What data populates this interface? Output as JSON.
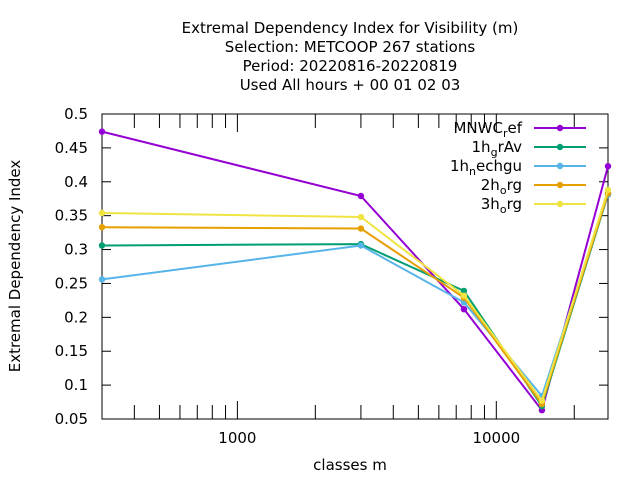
{
  "chart_data": {
    "type": "line",
    "title_lines": [
      "Extremal Dependency Index  for Visibility (m)",
      "Selection: METCOOP    267 stations",
      "Period: 20220816-20220819",
      "Used  All hours  + 00 01 02 03"
    ],
    "xlabel": "classes m",
    "ylabel": "Extremal Dependency Index",
    "x_scale": "log",
    "xlim": [
      300,
      27000
    ],
    "ylim": [
      0.05,
      0.5
    ],
    "x_ticks": [
      1000,
      10000
    ],
    "x_tick_labels": [
      "1000",
      "10000"
    ],
    "y_ticks": [
      0.05,
      0.1,
      0.15,
      0.2,
      0.25,
      0.3,
      0.35,
      0.4,
      0.45,
      0.5
    ],
    "y_tick_labels": [
      "0.05",
      "0.1",
      "0.15",
      "0.2",
      "0.25",
      "0.3",
      "0.35",
      "0.4",
      "0.45",
      "0.5"
    ],
    "grid": false,
    "legend_position": "top-right",
    "x": [
      300,
      3000,
      7500,
      15000,
      27000
    ],
    "series": [
      {
        "name": "MNWC_ref",
        "legend": {
          "base": "MNWC",
          "sub": "r",
          "rest": "ef"
        },
        "color": "#9400d3",
        "values": [
          0.474,
          0.379,
          0.212,
          0.063,
          0.423
        ]
      },
      {
        "name": "1h_grAv",
        "legend": {
          "base": "1h",
          "sub": "g",
          "rest": "rAv"
        },
        "color": "#009e73",
        "values": [
          0.306,
          0.308,
          0.239,
          0.069,
          0.381
        ]
      },
      {
        "name": "1h_nechgu",
        "legend": {
          "base": "1h",
          "sub": "n",
          "rest": "echgu"
        },
        "color": "#56b4e9",
        "values": [
          0.256,
          0.306,
          0.222,
          0.084,
          0.381
        ]
      },
      {
        "name": "2h_org",
        "legend": {
          "base": "2h",
          "sub": "o",
          "rest": "rg"
        },
        "color": "#e69f00",
        "values": [
          0.333,
          0.331,
          0.229,
          0.072,
          0.383
        ]
      },
      {
        "name": "3h_org",
        "legend": {
          "base": "3h",
          "sub": "o",
          "rest": "rg"
        },
        "color": "#f0e442",
        "values": [
          0.354,
          0.348,
          0.232,
          0.077,
          0.388
        ]
      }
    ]
  }
}
